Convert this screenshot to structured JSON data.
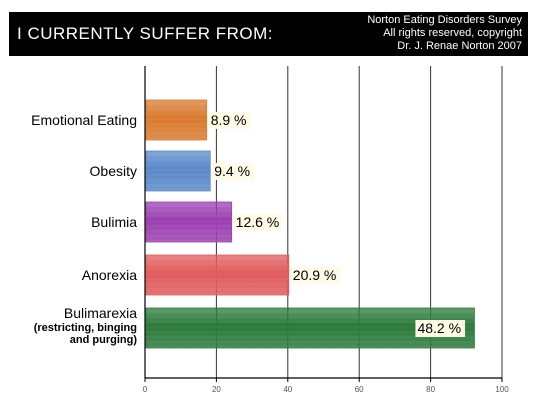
{
  "header": {
    "title": "I CURRENTLY SUFFER FROM:",
    "credit_lines": [
      "Norton Eating Disorders Survey",
      "All rights reserved, copyright",
      "Dr. J. Renae Norton 2007"
    ]
  },
  "chart_data": {
    "type": "bar",
    "orientation": "horizontal",
    "categories": [
      {
        "label": "Emotional Eating",
        "sublabel": ""
      },
      {
        "label": "Obesity",
        "sublabel": ""
      },
      {
        "label": "Bulimia",
        "sublabel": ""
      },
      {
        "label": "Anorexia",
        "sublabel": ""
      },
      {
        "label": "Bulimarexia",
        "sublabel": "(restricting, binging and purging)",
        "sublabel_lines": [
          "(restricting, binging",
          "and purging)"
        ]
      }
    ],
    "values": [
      17,
      18,
      24,
      40,
      92
    ],
    "value_labels": [
      "8.9 %",
      "9.4 %",
      "12.6 %",
      "20.9 %",
      "48.2 %"
    ],
    "colors": [
      "#d97a2e",
      "#5a88c8",
      "#9a3fb0",
      "#e05a5a",
      "#2a7a3a"
    ],
    "xlim": [
      0,
      100
    ],
    "xticks": [
      0,
      20,
      40,
      60,
      80,
      100
    ],
    "grid": true,
    "xlabel": "",
    "ylabel": ""
  }
}
